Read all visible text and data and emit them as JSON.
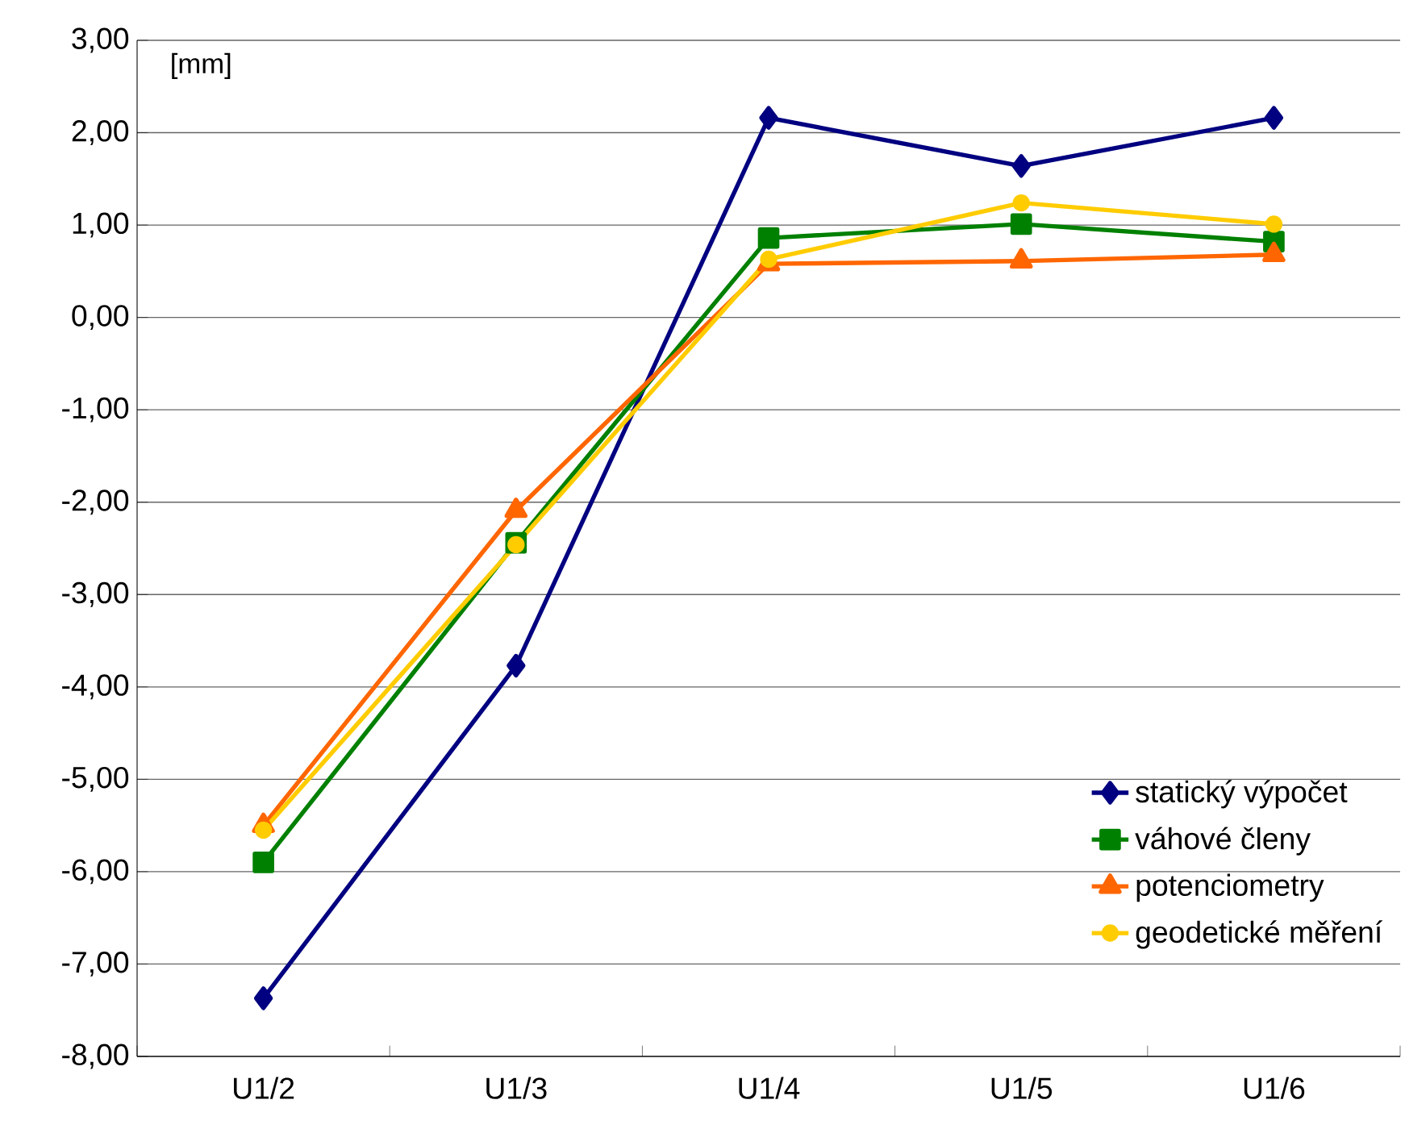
{
  "chart_data": {
    "type": "line",
    "ylabel": "[mm]",
    "categories": [
      "U1/2",
      "U1/3",
      "U1/4",
      "U1/5",
      "U1/6"
    ],
    "series": [
      {
        "name": "statický výpočet",
        "color": "#000080",
        "marker": "diamond",
        "values": [
          -7.37,
          -3.77,
          2.16,
          1.64,
          2.16
        ]
      },
      {
        "name": "váhové členy",
        "color": "#008000",
        "marker": "square",
        "values": [
          -5.9,
          -2.44,
          0.86,
          1.01,
          0.82
        ]
      },
      {
        "name": "potenciometry",
        "color": "#ff6600",
        "marker": "triangle",
        "values": [
          -5.5,
          -2.09,
          0.58,
          0.61,
          0.68
        ]
      },
      {
        "name": "geodetické měření",
        "color": "#ffcc00",
        "marker": "circle",
        "values": [
          -5.55,
          -2.46,
          0.63,
          1.24,
          1.01
        ]
      }
    ],
    "ylim": [
      -8,
      3
    ],
    "yticks": [
      {
        "value": -8,
        "label": "-8,00"
      },
      {
        "value": -7,
        "label": "-7,00"
      },
      {
        "value": -6,
        "label": "-6,00"
      },
      {
        "value": -5,
        "label": "-5,00"
      },
      {
        "value": -4,
        "label": "-4,00"
      },
      {
        "value": -3,
        "label": "-3,00"
      },
      {
        "value": -2,
        "label": "-2,00"
      },
      {
        "value": -1,
        "label": "-1,00"
      },
      {
        "value": 0,
        "label": "0,00"
      },
      {
        "value": 1,
        "label": "1,00"
      },
      {
        "value": 2,
        "label": "2,00"
      },
      {
        "value": 3,
        "label": "3,00"
      }
    ],
    "grid": "y",
    "legend": "right",
    "line_style": "solid"
  }
}
